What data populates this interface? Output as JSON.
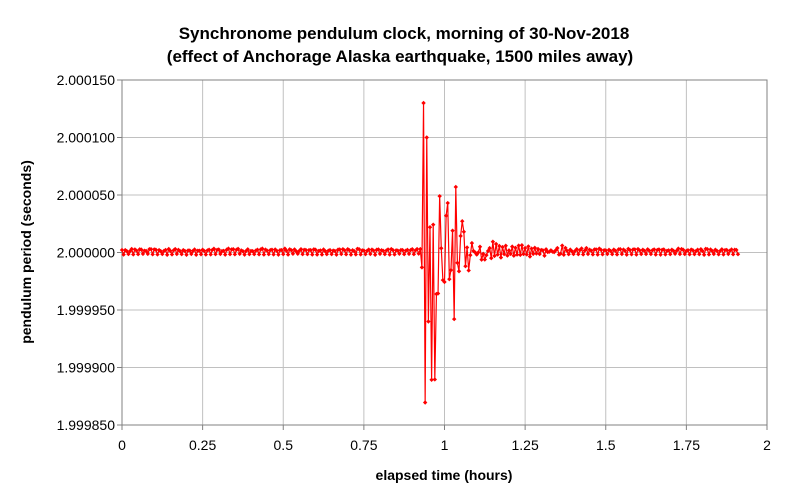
{
  "chart_data": {
    "type": "line",
    "title_line1": "Synchronome pendulum clock, morning of 30-Nov-2018",
    "title_line2": "(effect of Anchorage Alaska earthquake, 1500 miles away)",
    "xlabel": "elapsed time (hours)",
    "ylabel": "pendulum period (seconds)",
    "xlim": [
      0,
      2
    ],
    "ylim": [
      1.99985,
      2.00015
    ],
    "x_ticks": [
      "0",
      "0.25",
      "0.5",
      "0.75",
      "1",
      "1.25",
      "1.5",
      "1.75",
      "2"
    ],
    "y_ticks": [
      "1.999850",
      "1.999900",
      "1.999950",
      "2.000000",
      "2.000050",
      "2.000100",
      "2.000150"
    ],
    "grid": true,
    "series": [
      {
        "color": "#ff0000",
        "marker": "diamond",
        "x_start": 0,
        "x_step": 0.005,
        "values": [
          2.0000022,
          1.9999982,
          2.0000021,
          2.0000012,
          1.9999986,
          2.0000012,
          2.0000031,
          1.9999983,
          2.0000027,
          2.0000016,
          1.9999985,
          2.0000028,
          2.0000025,
          1.9999988,
          2.0000016,
          2.0000013,
          1.9999988,
          2.0000029,
          2.0000029,
          1.9999984,
          2.0000027,
          2.0000024,
          1.9999983,
          2.0000021,
          2.0000012,
          1.9999986,
          2.0000014,
          2.0000022,
          1.999998,
          2.0000031,
          2.0000014,
          1.9999983,
          2.0000019,
          2.000003,
          1.9999987,
          2.0000023,
          2.0000012,
          1.9999985,
          2.0000021,
          2.0000013,
          1.999998,
          2.0000018,
          2.0000017,
          1.9999987,
          2.0000014,
          2.0000026,
          1.999998,
          2.0000016,
          2.0000016,
          1.9999984,
          2.0000024,
          2.0000014,
          1.9999982,
          2.0000018,
          2.0000024,
          1.9999983,
          2.0000022,
          2.0000033,
          1.9999985,
          2.0000023,
          2.0000026,
          1.9999987,
          2.0000012,
          2.0000015,
          1.9999981,
          2.0000025,
          2.0000034,
          1.9999985,
          2.0000027,
          2.0000029,
          1.9999984,
          2.0000024,
          2.0000032,
          1.9999988,
          2.0000018,
          2.0000011,
          1.9999981,
          2.0000014,
          2.0000028,
          1.9999985,
          2.0000014,
          2.0000012,
          1.9999985,
          2.0000017,
          2.0000024,
          1.9999984,
          2.0000026,
          2.0000034,
          1.9999982,
          2.0000025,
          2.0000016,
          1.9999985,
          2.0000021,
          2.0000024,
          1.9999983,
          2.0000026,
          2.0000015,
          1.9999981,
          2.000002,
          2.0000021,
          1.9999985,
          2.0000034,
          2.0000015,
          1.9999982,
          2.0000028,
          2.000002,
          1.9999989,
          2.0000027,
          2.0000011,
          1.9999989,
          2.0000015,
          2.0000029,
          1.9999985,
          2.0000023,
          2.0000022,
          1.9999985,
          2.0000021,
          2.0000021,
          1.9999982,
          2.0000028,
          2.0000024,
          1.9999982,
          2.0000014,
          2.0000018,
          1.9999982,
          2.0000026,
          2.0000012,
          1.9999985,
          2.0000016,
          2.0000021,
          1.9999985,
          2.0000017,
          2.0000014,
          1.9999981,
          2.0000025,
          2.0000026,
          1.9999986,
          2.0000029,
          2.0000019,
          1.9999984,
          2.0000029,
          2.000002,
          1.9999981,
          2.000002,
          2.0000012,
          1.9999983,
          2.0000032,
          2.0000029,
          1.9999983,
          2.0000019,
          2.0000017,
          1.9999985,
          2.0000015,
          2.0000025,
          1.9999987,
          2.0000025,
          2.0000017,
          1.999998,
          2.0000024,
          2.0000027,
          1.9999988,
          2.000002,
          2.0000015,
          1.9999985,
          2.0000018,
          2.0000026,
          1.9999982,
          2.000003,
          2.0000021,
          1.9999983,
          2.0000019,
          2.0000017,
          1.9999989,
          2.0000022,
          2.0000021,
          1.9999985,
          2.0000016,
          2.0000023,
          1.9999988,
          2.0000021,
          2.0000029,
          1.9999985,
          2.0000018,
          2.000003,
          1.999999,
          2.000003,
          1.99998707,
          2.00013,
          1.99986957,
          2.0001,
          1.99994,
          2.000022,
          1.9998893,
          2.0000242,
          1.9998896,
          1.9999639,
          1.9999644,
          2.000049,
          2.0000037,
          1.999976,
          1.9999744,
          2.000032,
          2.000043,
          1.9999768,
          1.9999847,
          2.000019,
          1.9999421,
          2.000057,
          1.999991,
          1.9999837,
          2.0000144,
          2.0000272,
          2.000018,
          1.9999881,
          2.0000044,
          1.9999844,
          1.9999977,
          2.0000082,
          2.0000013,
          2.0000001,
          1.9999982,
          2.0000001,
          2.000005,
          1.9999938,
          1.9999988,
          1.9999939,
          1.9999977,
          2.0000013,
          2.0000038,
          1.9999951,
          2.0000094,
          1.999997,
          2.0000074,
          1.9999982,
          2.0000057,
          1.9999956,
          2.0000047,
          1.9999986,
          2.0000059,
          1.9999973,
          2.0000019,
          1.9999988,
          2.0000051,
          1.9999972,
          2.0000041,
          1.9999982,
          2.000006,
          1.9999979,
          2.0000063,
          1.9999987,
          2.0000039,
          1.9999983,
          2.0000053,
          1.9999965,
          2.0000034,
          1.9999988,
          2.0000041,
          1.9999991,
          2.0000031,
          1.9999987,
          2.0000022,
          2.0000019,
          1.9999972,
          2.0000028,
          2.0000004,
          2.0000007,
          2.0000019,
          2.0000007,
          2.0000003,
          2.000002,
          2.0000039,
          1.9999982,
          1.999999,
          2.000006,
          1.999998,
          2.000004,
          2.0000015,
          1.9999985,
          2.0000025,
          2.0000011,
          1.9999986,
          2.0000014,
          2.0000029,
          1.9999985,
          2.0000021,
          2.0000035,
          1.9999983,
          2.0000017,
          2.0000039,
          1.9999987,
          2.0000024,
          2.0000016,
          1.9999983,
          2.0000027,
          2.0000027,
          1.9999982,
          2.0000034,
          2.0000024,
          1.9999984,
          2.000002,
          2.0000019,
          1.9999987,
          2.0000023,
          2.0000014,
          1.9999985,
          2.0000025,
          2.0000015,
          1.9999983,
          2.0000028,
          2.0000029,
          1.9999986,
          2.0000025,
          2.0000015,
          1.9999981,
          2.0000032,
          2.0000021,
          1.9999984,
          2.0000027,
          2.0000027,
          1.9999982,
          2.000003,
          2.0000018,
          1.9999986,
          2.0000024,
          2.0000015,
          1.9999986,
          2.0000028,
          2.0000016,
          1.9999986,
          2.000002,
          2.0000027,
          1.9999982,
          2.0000022,
          2.0000027,
          1.9999981,
          2.0000023,
          2.0000026,
          1.9999983,
          2.0000015,
          2.0000019,
          1.9999985,
          2.0000024,
          2.0000015,
          1.9999989,
          2.0000016,
          2.0000034,
          1.9999986,
          2.000003,
          2.0000024,
          1.9999986,
          2.0000013,
          2.000002,
          1.9999984,
          2.0000025,
          2.000002,
          1.9999985,
          2.0000013,
          2.0000024,
          1.9999985,
          2.0000029,
          2.0000013,
          1.999998,
          2.0000032,
          2.0000029,
          1.9999983,
          2.0000026,
          2.0000014,
          1.9999987,
          2.0000024,
          2.0000014,
          1.9999984,
          2.0000014,
          2.0000028,
          1.9999983,
          2.0000021,
          2.0000022,
          1.9999987,
          2.0000016,
          2.0000026,
          1.9999984,
          2.0000024,
          2.0000022,
          1.9999985
        ]
      }
    ]
  }
}
